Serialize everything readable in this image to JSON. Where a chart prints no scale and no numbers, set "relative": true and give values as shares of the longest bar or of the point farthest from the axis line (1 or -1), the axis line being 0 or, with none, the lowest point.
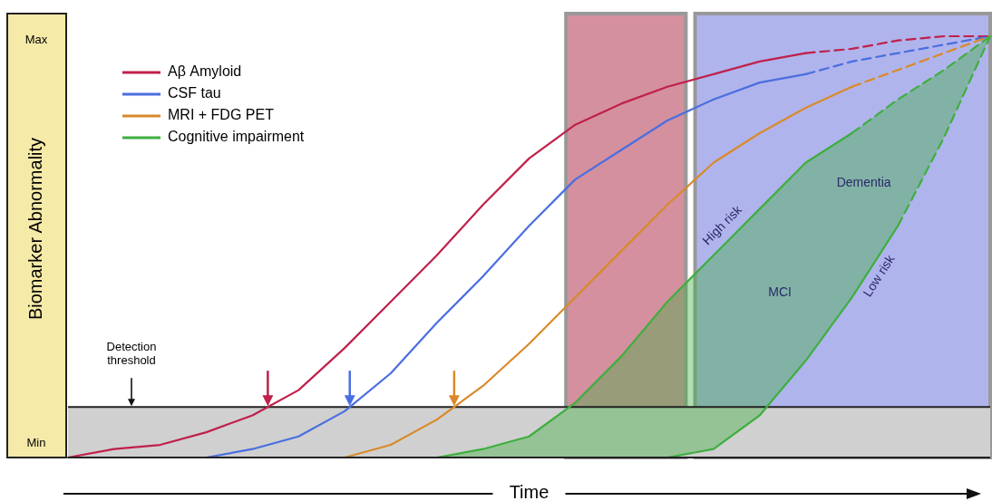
{
  "chart_data": {
    "type": "line",
    "ylabel": "Biomarker Abnormality",
    "xlabel": "Time",
    "categories": [
      null,
      null,
      null,
      null,
      null,
      null,
      null,
      null,
      null,
      null,
      null,
      null,
      null,
      null,
      null,
      null,
      null,
      null,
      null,
      null,
      null
    ],
    "relative": true,
    "legend": "top left",
    "series": [
      {
        "name": "Aβ Amyloid",
        "color": "#c0204a",
        "line_style": "solid",
        "values": [
          0,
          0.02,
          0.03,
          0.06,
          0.1,
          0.16,
          0.26,
          0.37,
          0.48,
          0.6,
          0.71,
          0.79,
          0.84,
          0.88,
          0.91,
          0.94,
          0.96,
          null,
          null,
          null,
          null
        ]
      },
      {
        "name": "CSF tau",
        "color": "#4a6ee0",
        "line_style": "solid",
        "values": [
          null,
          null,
          null,
          0,
          0.02,
          0.05,
          0.11,
          0.2,
          0.32,
          0.43,
          0.55,
          0.66,
          0.73,
          0.8,
          0.85,
          0.89,
          0.91,
          null,
          null,
          null,
          null
        ]
      },
      {
        "name": "MRI + FDG PET",
        "color": "#d98a2a",
        "line_style": "solid",
        "values": [
          null,
          null,
          null,
          null,
          null,
          null,
          0,
          0.03,
          0.09,
          0.17,
          0.27,
          0.38,
          0.49,
          0.6,
          0.7,
          0.77,
          0.83,
          0.88,
          null,
          null,
          null
        ]
      },
      {
        "name": "Cognitive impairment",
        "color": "#3fae3f",
        "line_style": "solid",
        "values": [
          null,
          null,
          null,
          null,
          null,
          null,
          null,
          null,
          0,
          0.02,
          0.05,
          0.13,
          0.24,
          0.37,
          0.48,
          0.59,
          0.7,
          0.77,
          null,
          null,
          null
        ],
        "upper": [
          null,
          null,
          null,
          null,
          null,
          null,
          null,
          null,
          0,
          0.02,
          0.05,
          0.13,
          0.24,
          0.37,
          0.48,
          0.59,
          0.7,
          0.77,
          0.85,
          0.92,
          1
        ],
        "lower": [
          null,
          null,
          null,
          null,
          null,
          null,
          null,
          null,
          0,
          0,
          0,
          0,
          0,
          0,
          0.02,
          0.1,
          0.23,
          0.38,
          0.55,
          0.76,
          1
        ]
      },
      {
        "color": "#3fae3f",
        "line_style": "solid",
        "values": [
          null,
          null,
          null,
          null,
          null,
          null,
          null,
          null,
          null,
          null,
          null,
          null,
          null,
          0,
          0.02,
          0.1,
          0.23,
          0.38,
          0.55,
          null,
          null
        ]
      },
      {
        "color": "#c0204a",
        "line_style": "dashed",
        "values": [
          null,
          null,
          null,
          null,
          null,
          null,
          null,
          null,
          null,
          null,
          null,
          null,
          null,
          null,
          null,
          null,
          0.96,
          0.97,
          0.99,
          1,
          1
        ]
      },
      {
        "color": "#4a6ee0",
        "line_style": "dashed",
        "values": [
          null,
          null,
          null,
          null,
          null,
          null,
          null,
          null,
          null,
          null,
          null,
          null,
          null,
          null,
          null,
          null,
          0.91,
          0.94,
          0.96,
          0.98,
          1
        ]
      },
      {
        "color": "#d98a2a",
        "line_style": "dashed",
        "values": [
          null,
          null,
          null,
          null,
          null,
          null,
          null,
          null,
          null,
          null,
          null,
          null,
          null,
          null,
          null,
          null,
          null,
          0.88,
          0.92,
          0.96,
          1
        ]
      },
      {
        "color": "#3fae3f",
        "line_style": "dashed",
        "values": [
          null,
          null,
          null,
          null,
          null,
          null,
          null,
          null,
          null,
          null,
          null,
          null,
          null,
          null,
          null,
          null,
          null,
          0.77,
          0.85,
          0.92,
          1
        ]
      },
      {
        "color": "#3fae3f",
        "line_style": "dashed",
        "values": [
          null,
          null,
          null,
          null,
          null,
          null,
          null,
          null,
          null,
          null,
          null,
          null,
          null,
          null,
          null,
          null,
          null,
          null,
          0.55,
          0.76,
          1
        ]
      }
    ],
    "ref_lines": [
      {
        "axis": "y",
        "value": 0.12,
        "label": "Detection threshold",
        "color": "#222222"
      }
    ],
    "bands": [
      {
        "axis": "y",
        "from": 0,
        "to": 0.12,
        "color": "#d0d0d0"
      }
    ],
    "annotations": [
      "Max",
      "Min",
      "High risk",
      "Dementia",
      "MCI",
      "Low risk"
    ]
  }
}
